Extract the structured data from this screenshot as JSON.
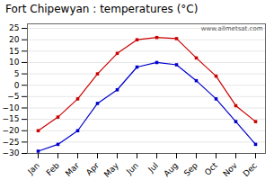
{
  "chart_data": {
    "type": "line",
    "title": "Fort Chipewyan : temperatures (°C)",
    "categories": [
      "Jan",
      "Feb",
      "Mar",
      "Apr",
      "May",
      "Jun",
      "Jul",
      "Aug",
      "Sep",
      "Oct",
      "Nov",
      "Dec"
    ],
    "series": [
      {
        "color": "#cc0000",
        "marker": "square",
        "values": [
          -20,
          -14,
          -6,
          5,
          14,
          20,
          21,
          20.5,
          12,
          4,
          -9,
          -16
        ]
      },
      {
        "color": "#0000cc",
        "marker": "square",
        "values": [
          -29,
          -26,
          -20,
          -8,
          -2,
          8,
          10,
          9,
          2,
          -6,
          -16,
          -26
        ]
      }
    ],
    "ylim": [
      -30,
      27
    ],
    "yticks": [
      -30,
      -25,
      -20,
      -15,
      -10,
      -5,
      0,
      5,
      10,
      15,
      20,
      25
    ],
    "grid": true,
    "annotations": [
      {
        "text": "www.allmetsat.com",
        "color": "#555555"
      }
    ]
  }
}
